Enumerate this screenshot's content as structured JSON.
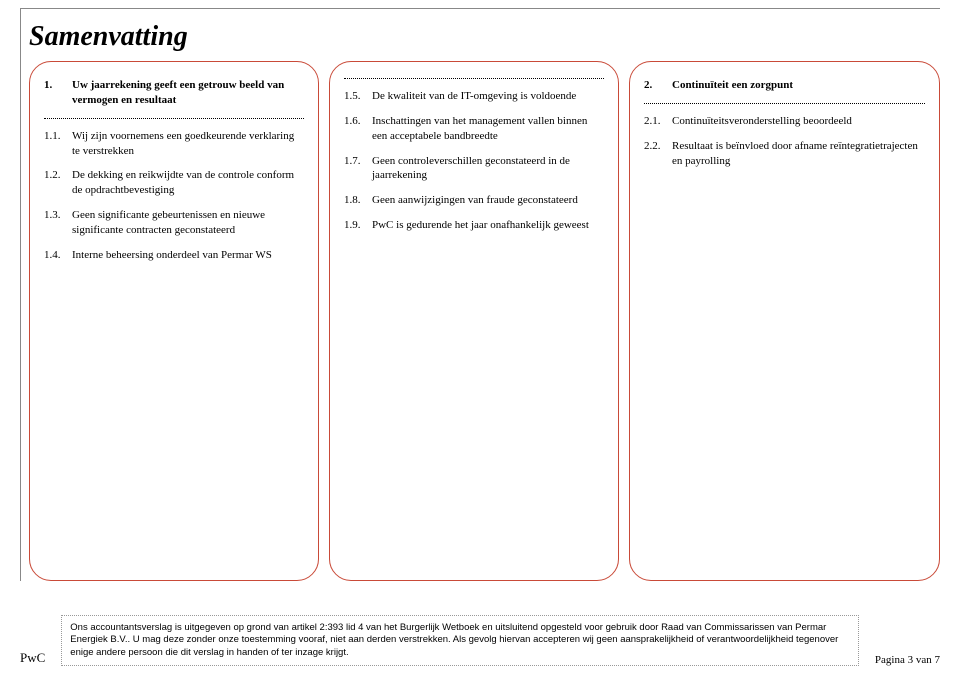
{
  "title": "Samenvatting",
  "panel1": {
    "header_num": "1.",
    "header_txt": "Uw jaarrekening geeft een getrouw beeld van vermogen en resultaat",
    "items": [
      {
        "num": "1.1.",
        "txt": "Wij zijn voornemens een goedkeurende verklaring te verstrekken"
      },
      {
        "num": "1.2.",
        "txt": "De dekking en reikwijdte van de controle conform de opdrachtbevestiging"
      },
      {
        "num": "1.3.",
        "txt": "Geen significante gebeurtenissen en nieuwe significante contracten geconstateerd"
      },
      {
        "num": "1.4.",
        "txt": "Interne beheersing onderdeel van Permar WS"
      }
    ]
  },
  "panel2": {
    "items": [
      {
        "num": "1.5.",
        "txt": "De kwaliteit van de IT-omgeving is voldoende"
      },
      {
        "num": "1.6.",
        "txt": "Inschattingen van het management vallen binnen een acceptabele bandbreedte"
      },
      {
        "num": "1.7.",
        "txt": "Geen controleverschillen geconstateerd in de jaarrekening"
      },
      {
        "num": "1.8.",
        "txt": "Geen aanwijzigingen van fraude geconstateerd"
      },
      {
        "num": "1.9.",
        "txt": "PwC is gedurende het jaar onafhankelijk geweest"
      }
    ]
  },
  "panel3": {
    "header_num": "2.",
    "header_txt": "Continuïteit een zorgpunt",
    "items": [
      {
        "num": "2.1.",
        "txt": "Continuïteitsveronderstelling beoordeeld"
      },
      {
        "num": "2.2.",
        "txt": "Resultaat is beïnvloed door afname reïntegratietrajecten en payrolling"
      }
    ]
  },
  "footer": {
    "logo": "PwC",
    "disclaimer": "Ons accountantsverslag is uitgegeven op grond van artikel 2:393 lid 4 van het Burgerlijk Wetboek en uitsluitend opgesteld voor gebruik door Raad van Commissarissen van Permar Energiek B.V.. U mag deze zonder onze toestemming vooraf, niet aan derden verstrekken. Als gevolg hiervan accepteren wij geen aansprakelijkheid of verantwoordelijkheid tegenover enige andere persoon die dit verslag in handen of ter inzage krijgt.",
    "page": "Pagina 3 van 7"
  }
}
